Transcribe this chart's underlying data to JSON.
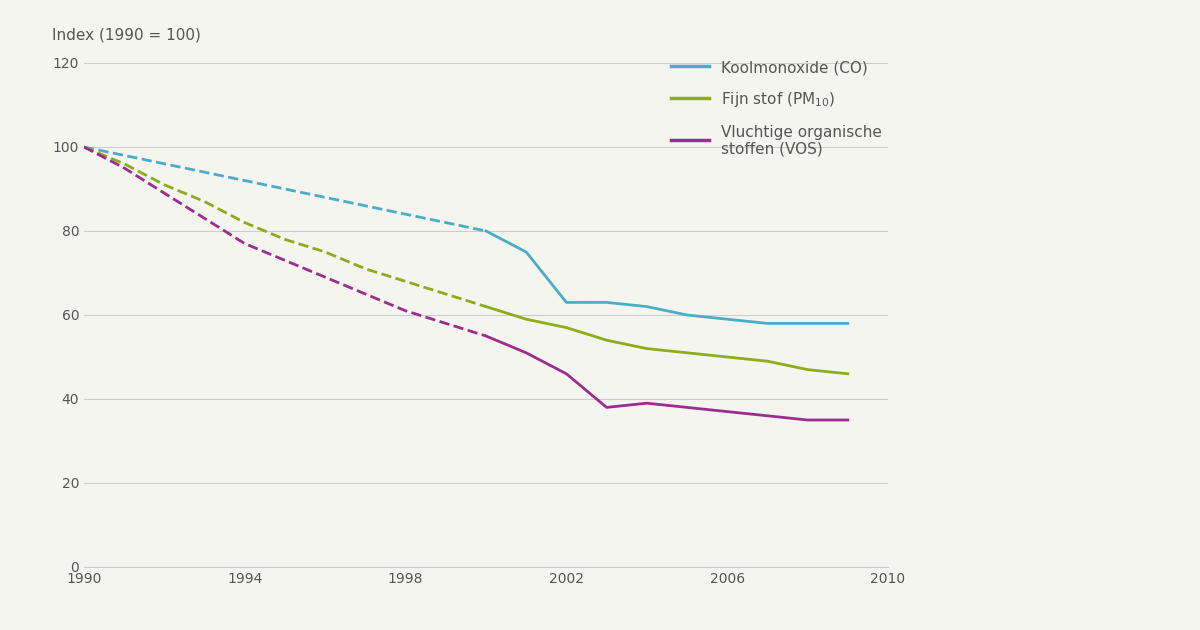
{
  "ylabel": "Index (1990 = 100)",
  "ylim": [
    0,
    120
  ],
  "yticks": [
    0,
    20,
    40,
    60,
    80,
    100,
    120
  ],
  "xlim": [
    1990,
    2010
  ],
  "xticks": [
    1990,
    1994,
    1998,
    2002,
    2006,
    2010
  ],
  "background_color": "#f5f5f0",
  "grid_color": "#cccccc",
  "CO_color": "#4bacc6",
  "PM_color": "#8faa1b",
  "VOS_color": "#9b2d8e",
  "CO_x": [
    1990,
    1991,
    1992,
    1993,
    1994,
    1995,
    1996,
    1997,
    1998,
    1999,
    2000,
    2001,
    2002,
    2003,
    2004,
    2005,
    2006,
    2007,
    2008,
    2009
  ],
  "CO_y": [
    100,
    98,
    96,
    94,
    92,
    90,
    88,
    86,
    84,
    82,
    80,
    75,
    63,
    63,
    62,
    60,
    59,
    58,
    58,
    58
  ],
  "CO_dash_end": 2000,
  "PM_x": [
    1990,
    1991,
    1992,
    1993,
    1994,
    1995,
    1996,
    1997,
    1998,
    1999,
    2000,
    2001,
    2002,
    2003,
    2004,
    2005,
    2006,
    2007,
    2008,
    2009
  ],
  "PM_y": [
    100,
    96,
    91,
    87,
    82,
    78,
    75,
    71,
    68,
    65,
    62,
    59,
    57,
    54,
    52,
    51,
    50,
    49,
    47,
    46
  ],
  "PM_dash_end": 2000,
  "VOS_x": [
    1990,
    1991,
    1992,
    1993,
    1994,
    1995,
    1996,
    1997,
    1998,
    1999,
    2000,
    2001,
    2002,
    2003,
    2004,
    2005,
    2006,
    2007,
    2008,
    2009
  ],
  "VOS_y": [
    100,
    95,
    89,
    83,
    77,
    73,
    69,
    65,
    61,
    58,
    55,
    51,
    46,
    38,
    39,
    38,
    37,
    36,
    35,
    35
  ],
  "VOS_dash_end": 2000,
  "legend_labels": [
    "Koolmonoxide (CO)",
    "Fijn stof (PM$_{10}$)",
    "Vluchtige organische\nstoffen (VOS)"
  ],
  "legend_colors": [
    "#4bacc6",
    "#8faa1b",
    "#9b2d8e"
  ],
  "font_color": "#555555",
  "axis_label_fontsize": 11,
  "tick_fontsize": 10,
  "legend_fontsize": 11,
  "linewidth": 2.0
}
